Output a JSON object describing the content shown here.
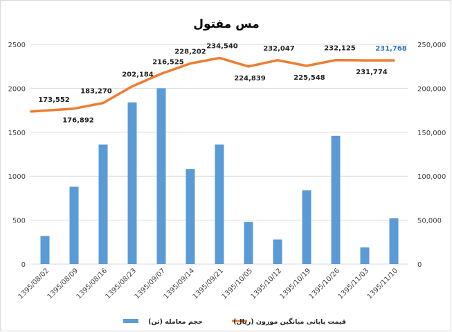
{
  "chart_data": {
    "type": "bar",
    "title": "مس مفتول",
    "categories": [
      "1395/08/02",
      "1395/08/09",
      "1395/08/16",
      "1395/08/23",
      "1395/09/07",
      "1395/09/14",
      "1395/09/21",
      "1395/10/05",
      "1395/10/12",
      "1395/10/19",
      "1395/10/26",
      "1395/11/03",
      "1395/11/10"
    ],
    "series": [
      {
        "name": "حجم معامله (تن)",
        "type": "bar",
        "axis": "left",
        "color": "#5b9bd5",
        "values": [
          320,
          880,
          1360,
          1840,
          2000,
          1080,
          1360,
          480,
          280,
          840,
          1460,
          190,
          520
        ]
      },
      {
        "name": "قیمت پایانی میانگین موزون (ریال)",
        "type": "line",
        "axis": "right",
        "color": "#ed7d31",
        "values": [
          173552,
          176892,
          183270,
          202184,
          216525,
          228202,
          234540,
          224839,
          232047,
          225548,
          232125,
          231774,
          231768
        ],
        "labels": [
          "173,552",
          "176,892",
          "183,270",
          "202,184",
          "216,525",
          "228,202",
          "234,540",
          "224,839",
          "232,047",
          "225,548",
          "232,125",
          "231,774",
          "231,768"
        ],
        "label_colors": [
          "#222",
          "#222",
          "#222",
          "#222",
          "#222",
          "#222",
          "#222",
          "#222",
          "#222",
          "#222",
          "#222",
          "#222",
          "#2e75b6"
        ]
      }
    ],
    "y_left": {
      "min": 0,
      "max": 2500,
      "ticks": [
        "0",
        "500",
        "1000",
        "1500",
        "2000",
        "2500"
      ]
    },
    "y_right": {
      "min": 0,
      "max": 250000,
      "ticks": [
        "0",
        "50,000",
        "100,000",
        "150,000",
        "200,000",
        "250,000"
      ]
    },
    "grid": true,
    "legend_position": "bottom"
  }
}
